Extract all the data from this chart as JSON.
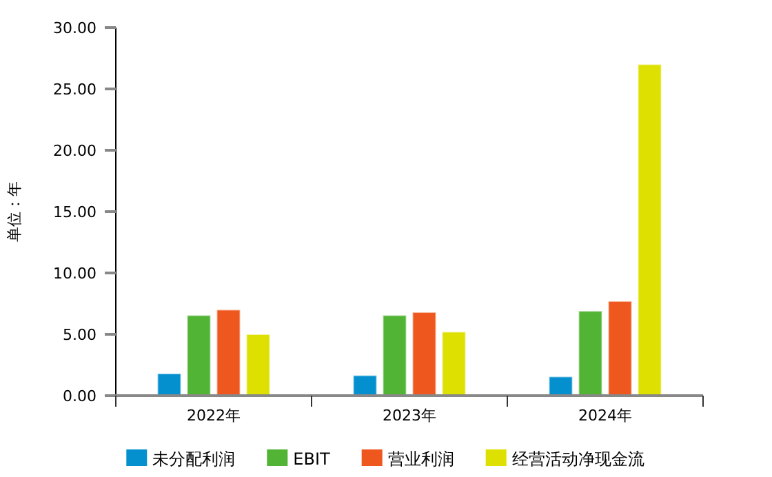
{
  "chart_data": {
    "type": "bar",
    "ylabel": "单位：年",
    "categories": [
      "2022年",
      "2023年",
      "2024年"
    ],
    "series": [
      {
        "name": "未分配利润",
        "color": "#0490cf",
        "values": [
          1.8,
          1.65,
          1.55
        ]
      },
      {
        "name": "EBIT",
        "color": "#52b434",
        "values": [
          6.55,
          6.55,
          6.9
        ]
      },
      {
        "name": "营业利润",
        "color": "#ee581e",
        "values": [
          7.0,
          6.8,
          7.7
        ]
      },
      {
        "name": "经营活动净现金流",
        "color": "#dde000",
        "values": [
          5.0,
          5.2,
          27.0
        ]
      }
    ],
    "ylim": [
      0,
      30
    ],
    "yticks": [
      {
        "value": 0,
        "label": "0.00"
      },
      {
        "value": 5,
        "label": "5.00"
      },
      {
        "value": 10,
        "label": "10.00"
      },
      {
        "value": 15,
        "label": "15.00"
      },
      {
        "value": 20,
        "label": "20.00"
      },
      {
        "value": 25,
        "label": "25.00"
      },
      {
        "value": 30,
        "label": "30.00"
      }
    ],
    "grid": false,
    "legend": "bottom"
  }
}
